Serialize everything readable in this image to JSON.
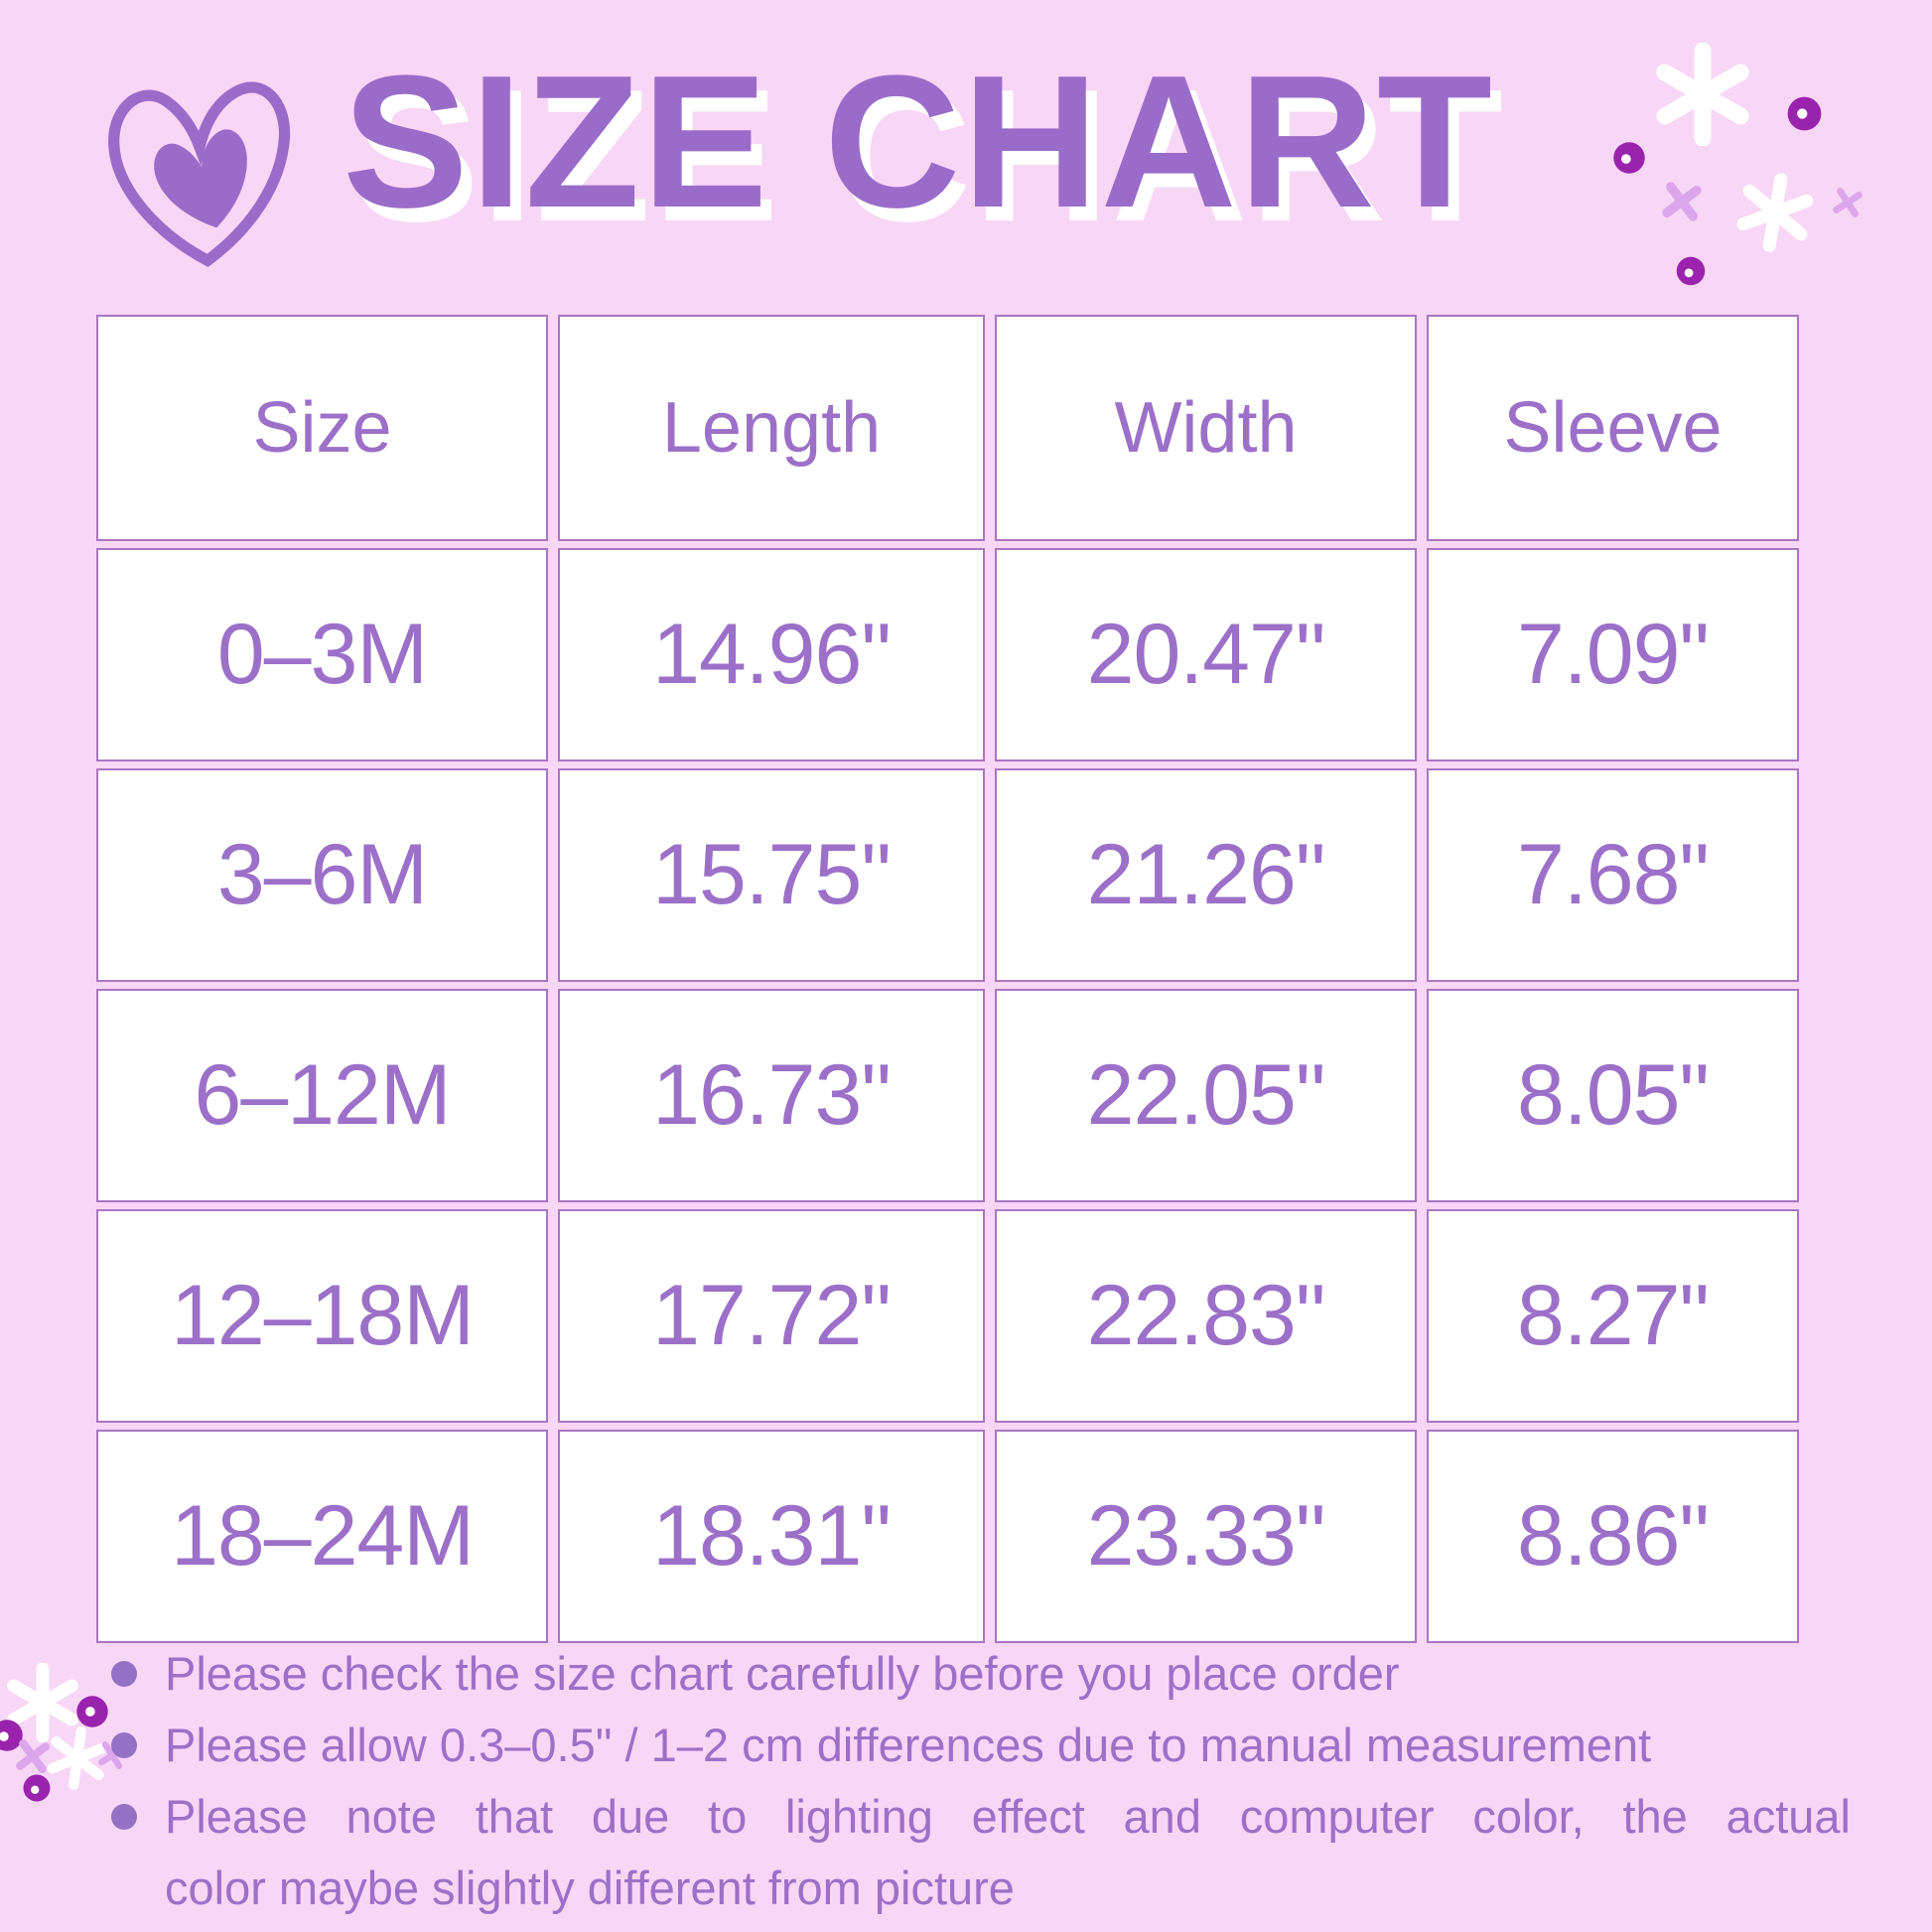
{
  "title": "SIZE CHART",
  "table": {
    "headers": [
      "Size",
      "Length",
      "Width",
      "Sleeve"
    ],
    "rows": [
      [
        "0–3M",
        "14.96\"",
        "20.47\"",
        "7.09\""
      ],
      [
        "3–6M",
        "15.75\"",
        "21.26\"",
        "7.68\""
      ],
      [
        "6–12M",
        "16.73\"",
        "22.05\"",
        "8.05\""
      ],
      [
        "12–18M",
        "17.72\"",
        "22.83\"",
        "8.27\""
      ],
      [
        "18–24M",
        "18.31\"",
        "23.33\"",
        "8.86\""
      ]
    ]
  },
  "notes": [
    {
      "lines": [
        "Please check the size chart carefully before you place order"
      ]
    },
    {
      "lines": [
        "Please allow 0.3–0.5\" / 1–2 cm differences due to manual measurement"
      ]
    },
    {
      "lines": [
        "Please note that due to lighting effect and computer color, the actual",
        "color maybe slightly different from picture"
      ]
    }
  ],
  "colors": {
    "background": "#F8D6F5",
    "title_purple": "#9A6CC9",
    "text_purple": "#9C70C8",
    "cell_background": "#FFFFFF",
    "cell_border": "#A976C2",
    "note_bullet": "#9571C6",
    "sparkle_white": "#FFFFFF",
    "sparkle_dot": "#9A23AE",
    "sparkle_x": "#DCA6EC"
  }
}
